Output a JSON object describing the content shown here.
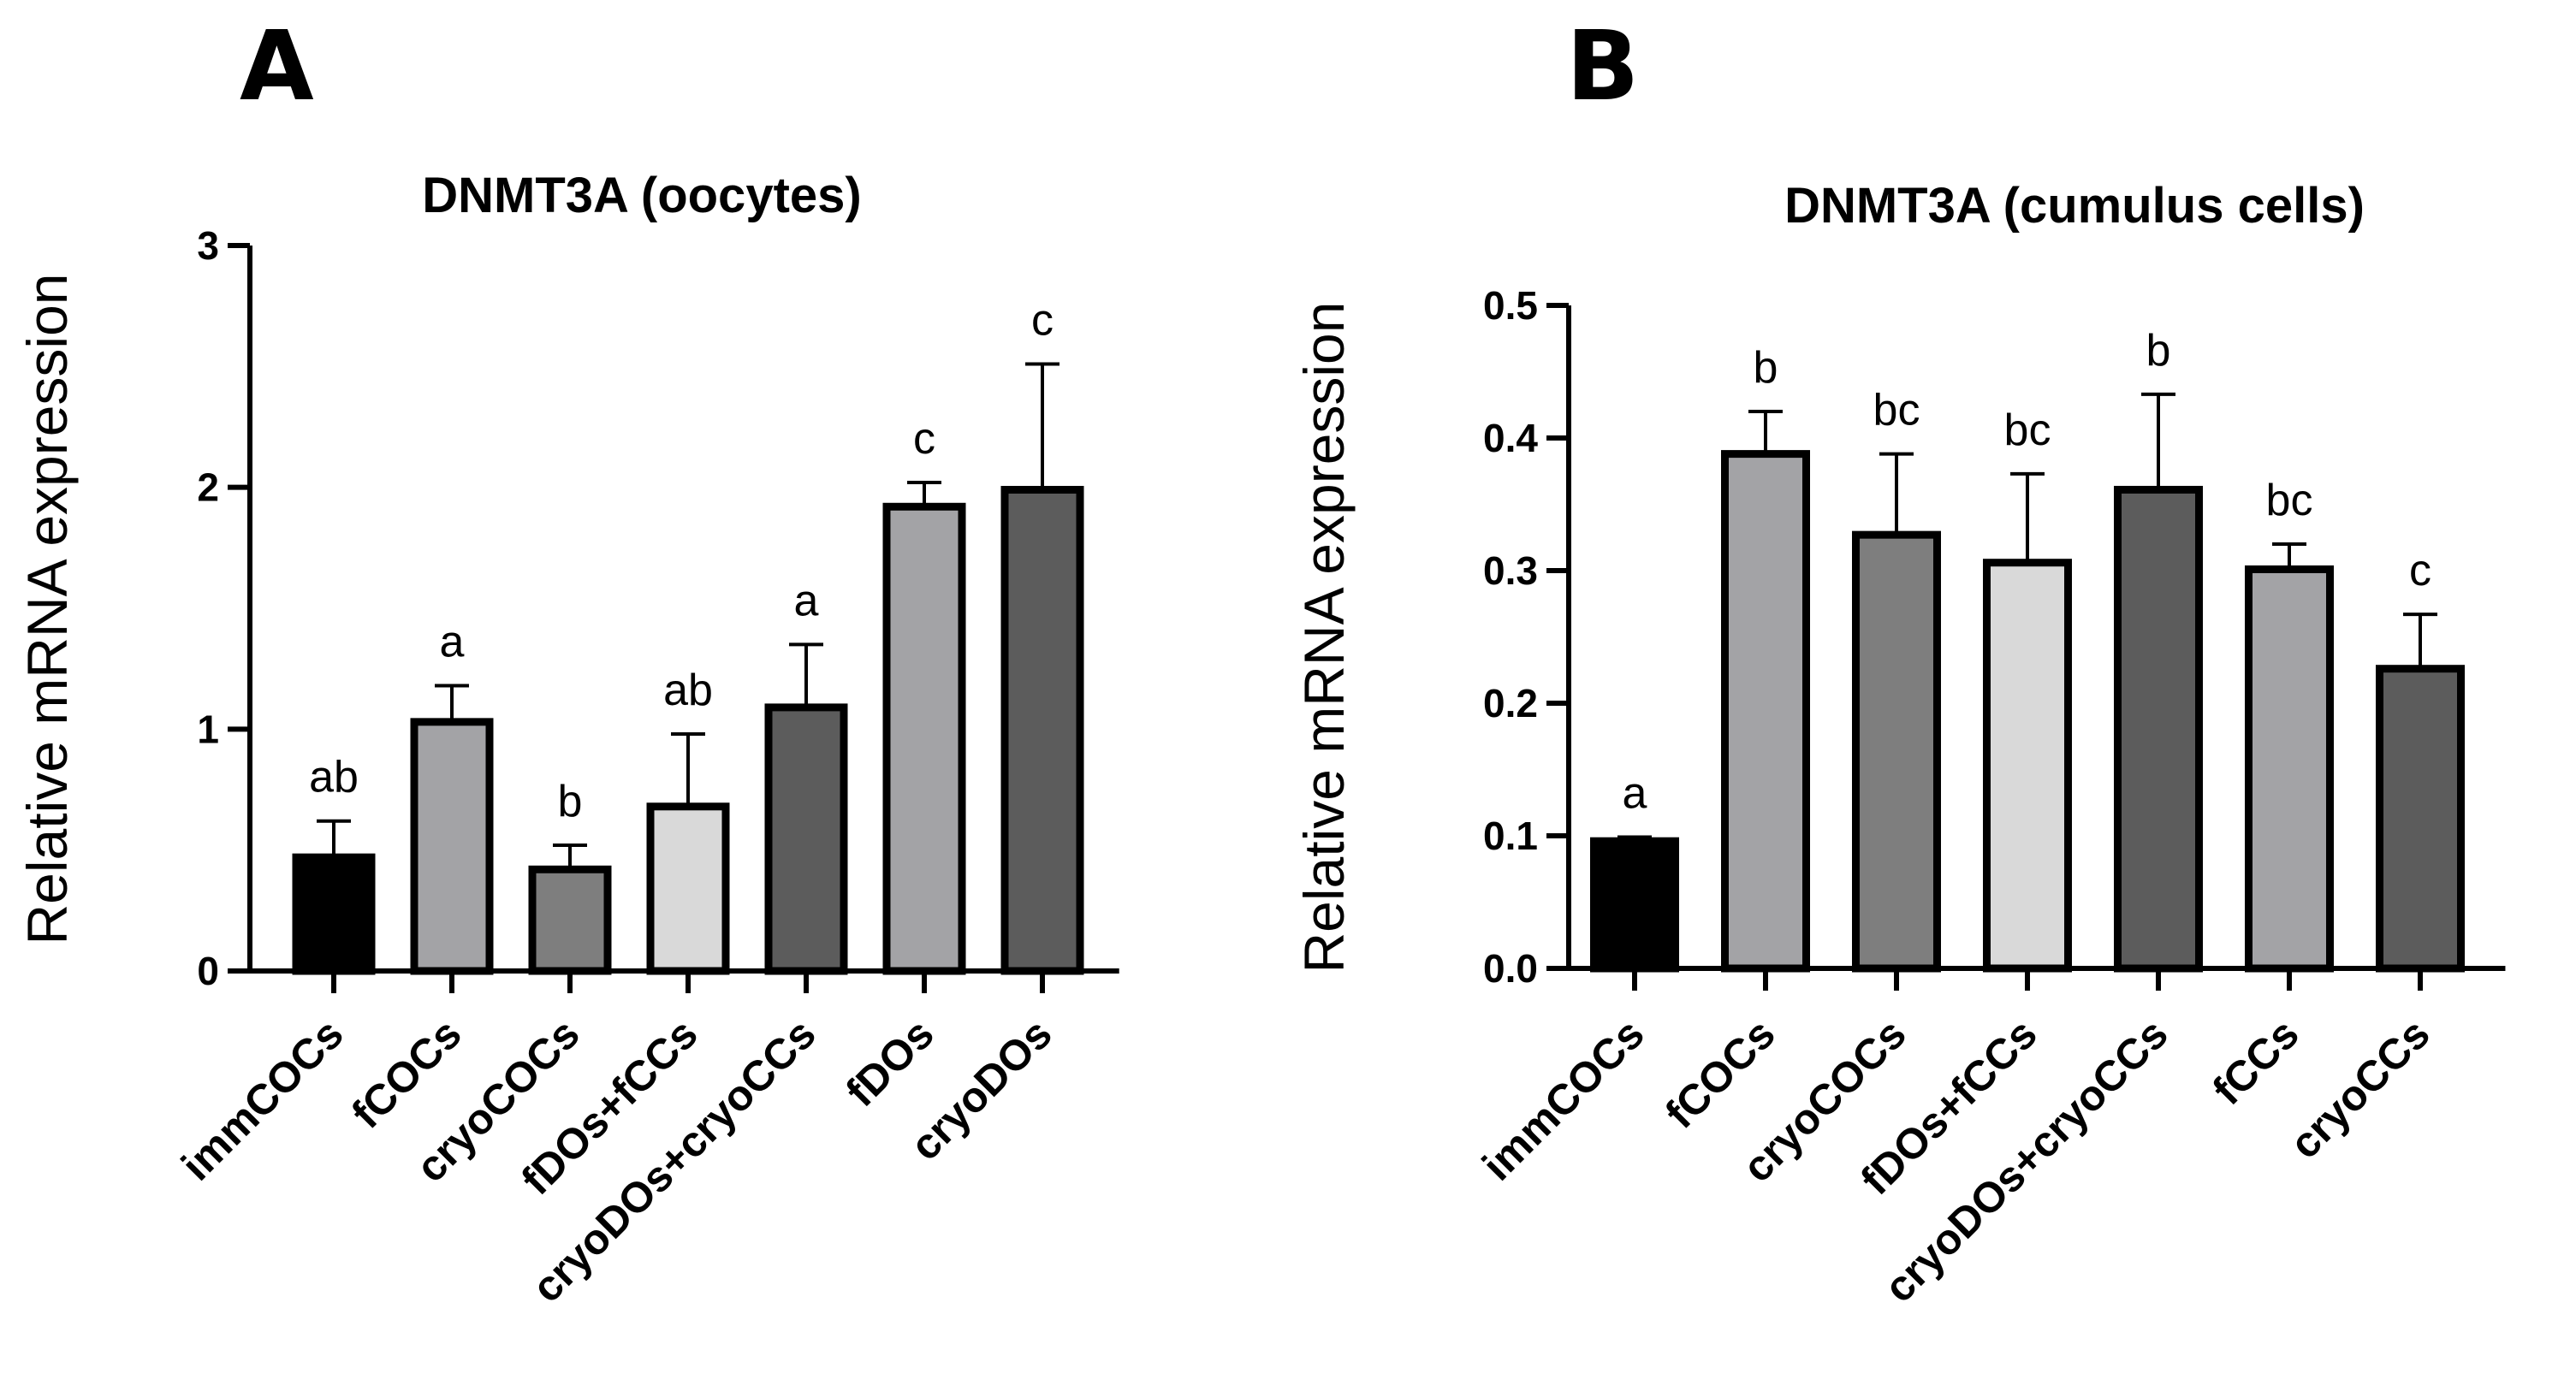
{
  "panels": [
    {
      "letter": "A"
    },
    {
      "letter": "B"
    }
  ],
  "chart_data": [
    {
      "type": "bar",
      "title": "DNMT3A (oocytes)",
      "xlabel": "",
      "ylabel": "Relative mRNA expression",
      "ylim": [
        0,
        3
      ],
      "yticks": [
        "0",
        "1",
        "2",
        "3"
      ],
      "categories": [
        "immCOCs",
        "fCOCs",
        "cryoCOCs",
        "fDOs+fCCs",
        "cryoDOs+cryoCCs",
        "fDOs",
        "cryoDOs"
      ],
      "values": [
        0.47,
        1.03,
        0.42,
        0.68,
        1.09,
        1.92,
        1.99
      ],
      "errors": [
        0.15,
        0.15,
        0.1,
        0.3,
        0.26,
        0.1,
        0.52
      ],
      "significance": [
        "ab",
        "a",
        "b",
        "ab",
        "a",
        "c",
        "c"
      ],
      "colors": [
        "#000000",
        "#a3a3a6",
        "#7e7e7e",
        "#d9d9d9",
        "#5c5c5c",
        "#a3a3a6",
        "#5c5c5c"
      ]
    },
    {
      "type": "bar",
      "title": "DNMT3A (cumulus cells)",
      "xlabel": "",
      "ylabel": "Relative mRNA expression",
      "ylim": [
        0,
        0.5
      ],
      "yticks": [
        "0.0",
        "0.1",
        "0.2",
        "0.3",
        "0.4",
        "0.5"
      ],
      "categories": [
        "immCOCs",
        "fCOCs",
        "cryoCOCs",
        "fDOs+fCCs",
        "cryoDOs+cryoCCs",
        "fCCs",
        "cryoCCs"
      ],
      "values": [
        0.096,
        0.388,
        0.327,
        0.306,
        0.361,
        0.301,
        0.226
      ],
      "errors": [
        0.003,
        0.032,
        0.061,
        0.067,
        0.072,
        0.019,
        0.041
      ],
      "significance": [
        "a",
        "b",
        "bc",
        "bc",
        "b",
        "bc",
        "c"
      ],
      "colors": [
        "#000000",
        "#a3a3a6",
        "#7e7e7e",
        "#d9d9d9",
        "#5c5c5c",
        "#a3a3a6",
        "#5c5c5c"
      ]
    }
  ]
}
